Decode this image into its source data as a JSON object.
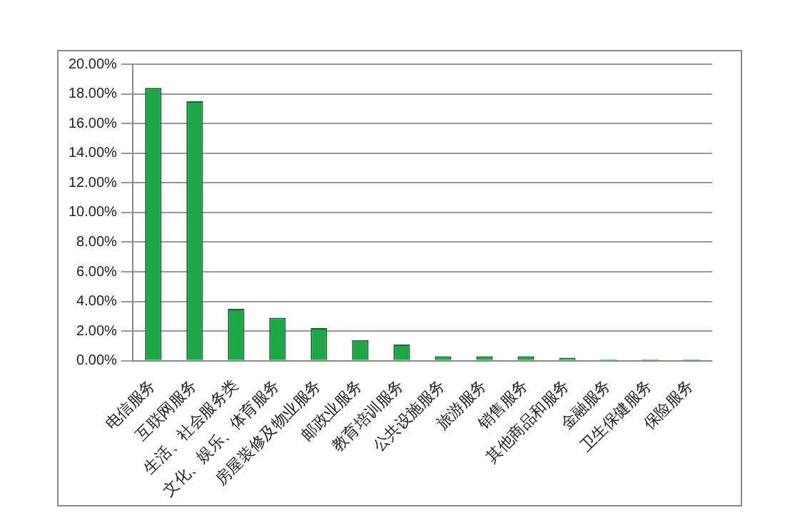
{
  "chart_data": {
    "type": "bar",
    "categories": [
      "电信服务",
      "互联网服务",
      "生活、社会服务类",
      "文化、娱乐、体育服务",
      "房屋装修及物业服务",
      "邮政业服务",
      "教育培训服务",
      "公共设施服务",
      "旅游服务",
      "销售服务",
      "其他商品和服务",
      "金融服务",
      "卫生保健服务",
      "保险服务"
    ],
    "values": [
      18.4,
      17.5,
      3.5,
      2.9,
      2.2,
      1.4,
      1.1,
      0.3,
      0.3,
      0.3,
      0.2,
      0.1,
      0.1,
      0.1
    ],
    "color": "#1ea546",
    "ylim": [
      0,
      20
    ],
    "yticks": [
      {
        "value": 0,
        "label": "0.00%"
      },
      {
        "value": 2,
        "label": "2.00%"
      },
      {
        "value": 4,
        "label": "4.00%"
      },
      {
        "value": 6,
        "label": "6.00%"
      },
      {
        "value": 8,
        "label": "8.00%"
      },
      {
        "value": 10,
        "label": "10.00%"
      },
      {
        "value": 12,
        "label": "12.00%"
      },
      {
        "value": 14,
        "label": "14.00%"
      },
      {
        "value": 16,
        "label": "16.00%"
      },
      {
        "value": 18,
        "label": "18.00%"
      },
      {
        "value": 20,
        "label": "20.00%"
      }
    ],
    "grid": "y",
    "legend": false
  }
}
